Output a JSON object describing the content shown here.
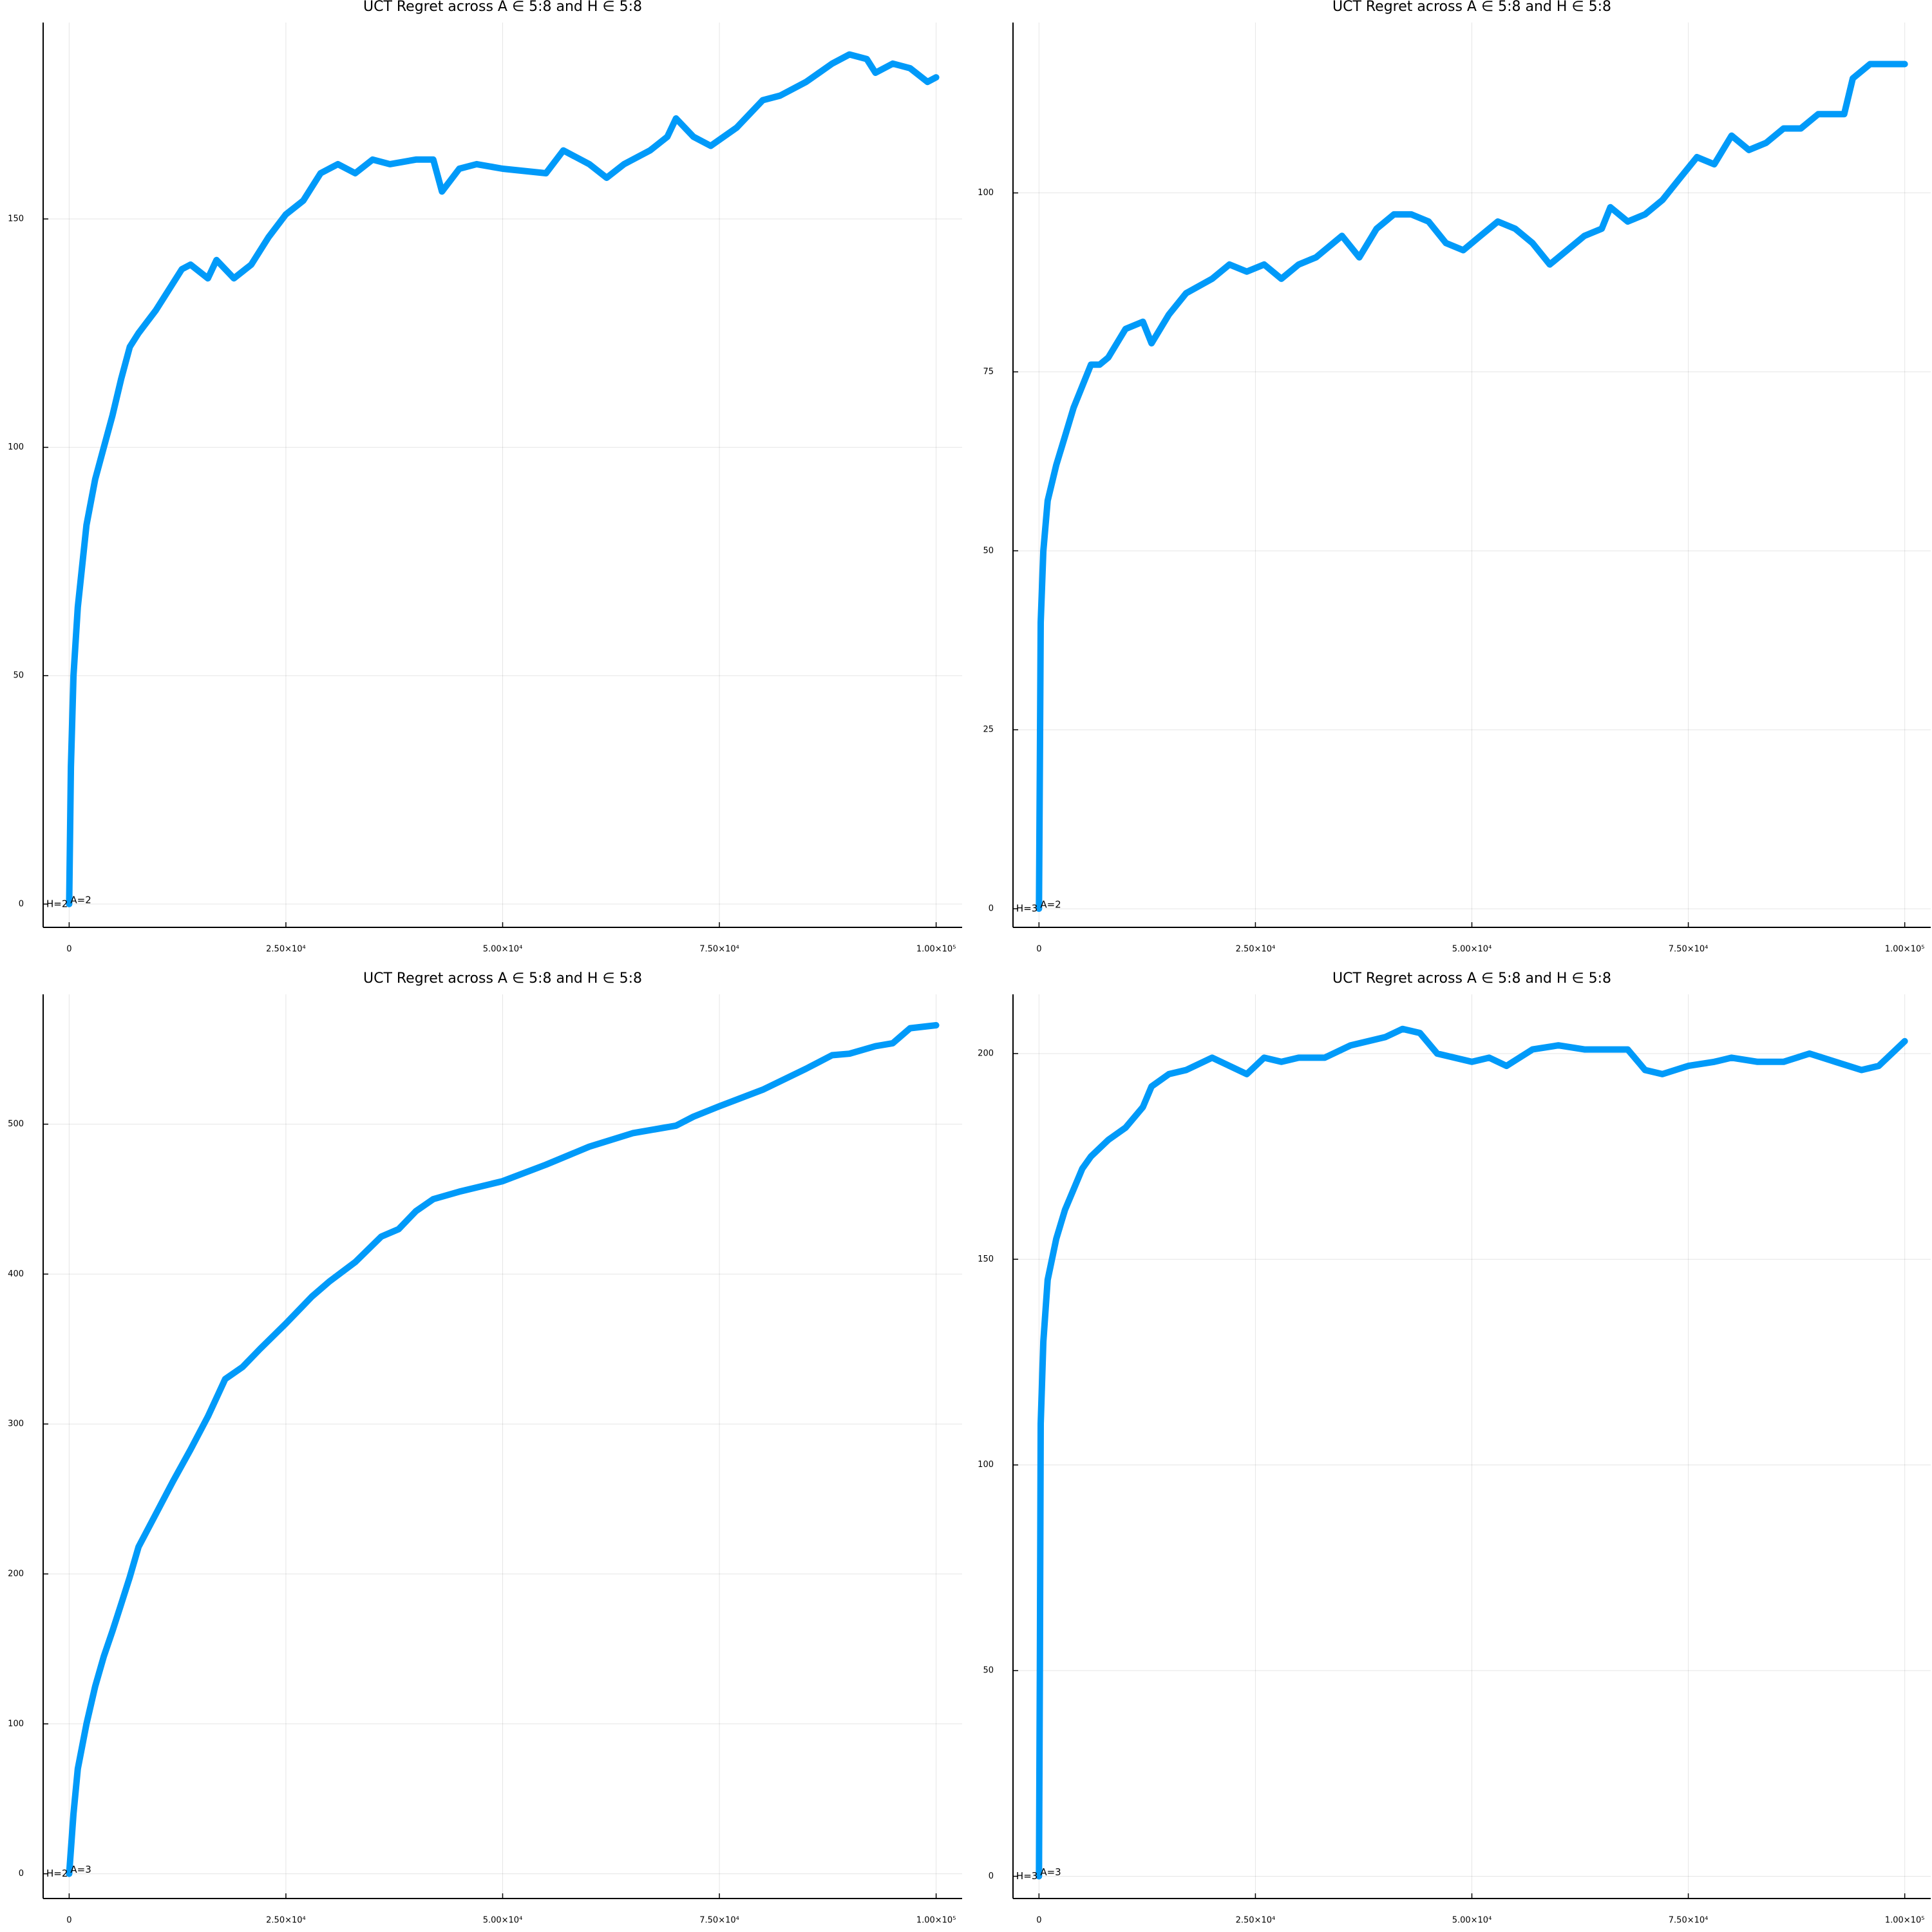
{
  "chart_data": [
    {
      "type": "line",
      "title": "UCT Regret across A ∈ 5:8 and H ∈ 5:8",
      "color": "#009af9",
      "grid": true,
      "annotations": [
        "H=2",
        "A=2"
      ],
      "xlim": [
        -3000,
        103000
      ],
      "ylim": [
        -5.1,
        193
      ],
      "xticks": [
        0,
        {
          "value": 25000,
          "label": "2.50×10⁴"
        },
        {
          "value": 50000,
          "label": "5.00×10⁴"
        },
        {
          "value": 75000,
          "label": "7.50×10⁴"
        },
        {
          "value": 100000,
          "label": "1.00×10⁵"
        }
      ],
      "yticks": [
        0,
        50,
        100,
        150
      ],
      "x": [
        0,
        200,
        500,
        1000,
        2000,
        3000,
        4000,
        5000,
        6000,
        7000,
        8000,
        10000,
        12000,
        13000,
        14000,
        16000,
        17000,
        19000,
        21000,
        23000,
        25000,
        27000,
        29000,
        31000,
        33000,
        35000,
        37000,
        40000,
        42000,
        43000,
        45000,
        47000,
        50000,
        55000,
        57000,
        60000,
        62000,
        64000,
        67000,
        69000,
        70000,
        72000,
        74000,
        77000,
        80000,
        82000,
        85000,
        88000,
        90000,
        92000,
        93000,
        95000,
        97000,
        99000,
        100000
      ],
      "values": [
        0,
        30,
        50,
        65,
        83,
        93,
        100,
        107,
        115,
        122,
        125,
        130,
        136,
        139,
        140,
        137,
        141,
        137,
        140,
        146,
        151,
        154,
        160,
        162,
        160,
        163,
        162,
        163,
        163,
        156,
        161,
        162,
        161,
        160,
        165,
        162,
        159,
        162,
        165,
        168,
        172,
        168,
        166,
        170,
        176,
        177,
        180,
        184,
        186,
        185,
        182,
        184,
        183,
        180,
        181
      ]
    },
    {
      "type": "line",
      "title": "UCT Regret across A ∈ 5:8 and H ∈ 5:8",
      "color": "#009af9",
      "grid": true,
      "annotations": [
        "H=3",
        "A=2"
      ],
      "xlim": [
        -3000,
        103000
      ],
      "ylim": [
        -2.6,
        123.8
      ],
      "xticks": [
        0,
        {
          "value": 25000,
          "label": "2.50×10⁴"
        },
        {
          "value": 50000,
          "label": "5.00×10⁴"
        },
        {
          "value": 75000,
          "label": "7.50×10⁴"
        },
        {
          "value": 100000,
          "label": "1.00×10⁵"
        }
      ],
      "yticks": [
        0,
        25,
        50,
        75,
        100
      ],
      "x": [
        0,
        100,
        200,
        500,
        1000,
        2000,
        3000,
        4000,
        5000,
        6000,
        7000,
        8000,
        10000,
        12000,
        13000,
        15000,
        17000,
        20000,
        22000,
        24000,
        26000,
        28000,
        30000,
        32000,
        35000,
        37000,
        39000,
        41000,
        43000,
        45000,
        47000,
        49000,
        51000,
        53000,
        55000,
        57000,
        59000,
        61000,
        63000,
        65000,
        66000,
        68000,
        70000,
        72000,
        74000,
        76000,
        78000,
        80000,
        82000,
        84000,
        86000,
        88000,
        90000,
        92000,
        93000,
        94000,
        96000,
        98000,
        100000
      ],
      "values": [
        0,
        20,
        40,
        50,
        57,
        62,
        66,
        70,
        73,
        76,
        76,
        77,
        81,
        82,
        79,
        83,
        86,
        88,
        90,
        89,
        90,
        88,
        90,
        91,
        94,
        91,
        95,
        97,
        97,
        96,
        93,
        92,
        94,
        96,
        95,
        93,
        90,
        92,
        94,
        95,
        98,
        96,
        97,
        99,
        102,
        105,
        104,
        108,
        106,
        107,
        109,
        109,
        111,
        111,
        111,
        116,
        118,
        118,
        118
      ]
    },
    {
      "type": "line",
      "title": "UCT Regret across A ∈ 5:8 and H ∈ 5:8",
      "color": "#009af9",
      "grid": true,
      "annotations": [
        "H=2",
        "A=3"
      ],
      "xlim": [
        -3000,
        103000
      ],
      "ylim": [
        -16.5,
        586.6
      ],
      "xticks": [
        0,
        {
          "value": 25000,
          "label": "2.50×10⁴"
        },
        {
          "value": 50000,
          "label": "5.00×10⁴"
        },
        {
          "value": 75000,
          "label": "7.50×10⁴"
        },
        {
          "value": 100000,
          "label": "1.00×10⁵"
        }
      ],
      "yticks": [
        0,
        100,
        200,
        300,
        400,
        500
      ],
      "x": [
        0,
        500,
        1000,
        2000,
        3000,
        4000,
        5000,
        6000,
        7000,
        8000,
        10000,
        12000,
        14000,
        16000,
        18000,
        20000,
        22000,
        25000,
        28000,
        30000,
        33000,
        36000,
        38000,
        40000,
        42000,
        45000,
        50000,
        55000,
        60000,
        65000,
        70000,
        72000,
        75000,
        80000,
        85000,
        88000,
        90000,
        93000,
        95000,
        97000,
        100000
      ],
      "values": [
        0,
        40,
        70,
        100,
        125,
        145,
        162,
        180,
        198,
        218,
        240,
        262,
        283,
        305,
        330,
        338,
        350,
        367,
        385,
        395,
        408,
        425,
        430,
        442,
        450,
        455,
        462,
        473,
        485,
        494,
        499,
        505,
        512,
        523,
        537,
        546,
        547,
        552,
        554,
        564,
        566
      ]
    },
    {
      "type": "line",
      "title": "UCT Regret across A ∈ 5:8 and H ∈ 5:8",
      "color": "#009af9",
      "grid": true,
      "annotations": [
        "H=3",
        "A=3"
      ],
      "xlim": [
        -3000,
        103000
      ],
      "ylim": [
        -5.4,
        214.4
      ],
      "xticks": [
        0,
        {
          "value": 25000,
          "label": "2.50×10⁴"
        },
        {
          "value": 50000,
          "label": "5.00×10⁴"
        },
        {
          "value": 75000,
          "label": "7.50×10⁴"
        },
        {
          "value": 100000,
          "label": "1.00×10⁵"
        }
      ],
      "yticks": [
        0,
        50,
        100,
        150,
        200
      ],
      "x": [
        0,
        100,
        200,
        500,
        1000,
        2000,
        3000,
        4000,
        5000,
        6000,
        8000,
        10000,
        12000,
        13000,
        15000,
        17000,
        20000,
        22000,
        24000,
        26000,
        28000,
        30000,
        33000,
        36000,
        40000,
        42000,
        44000,
        46000,
        48000,
        50000,
        52000,
        54000,
        57000,
        60000,
        63000,
        66000,
        68000,
        70000,
        72000,
        75000,
        78000,
        80000,
        83000,
        86000,
        89000,
        92000,
        95000,
        97000,
        99000,
        100000
      ],
      "values": [
        0,
        50,
        110,
        130,
        145,
        155,
        162,
        167,
        172,
        175,
        179,
        182,
        187,
        192,
        195,
        196,
        199,
        197,
        195,
        199,
        198,
        199,
        199,
        202,
        204,
        206,
        205,
        200,
        199,
        198,
        199,
        197,
        201,
        202,
        201,
        201,
        201,
        196,
        195,
        197,
        198,
        199,
        198,
        198,
        200,
        198,
        196,
        197,
        201,
        203
      ]
    }
  ]
}
